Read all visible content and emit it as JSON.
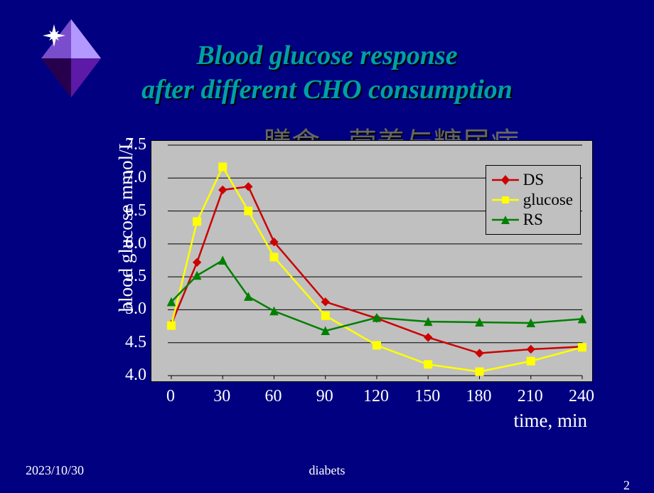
{
  "background_color": "#000080",
  "title": {
    "line1": "Blood glucose response",
    "line2": "after different CHO consumption",
    "color": "#00a0a8",
    "shadow_color": "#000000",
    "font_size": 38,
    "font_style": "italic bold"
  },
  "subtitle": {
    "text": "膳食、营养与糖尿病",
    "color": "#666666",
    "shadow_color": "#000000",
    "font_size": 40
  },
  "chart": {
    "type": "line",
    "plot_background": "#c0c0c0",
    "plot_border_color": "#000000",
    "grid_color": "#000000",
    "y_axis": {
      "label": "blood glucose mmol/L",
      "min": 4.0,
      "max": 7.5,
      "tick_step": 0.5,
      "ticks": [
        "4.0",
        "4.5",
        "5.0",
        "5.5",
        "6.0",
        "6.5",
        "7.0",
        "7.5"
      ],
      "tick_color": "#ffffff",
      "tick_fontsize": 24,
      "label_color": "#ffffff",
      "label_fontsize": 27
    },
    "x_axis": {
      "label": "time, min",
      "min": 0,
      "max": 240,
      "ticks": [
        0,
        30,
        60,
        90,
        120,
        150,
        180,
        210,
        240
      ],
      "tick_color": "#ffffff",
      "tick_fontsize": 24,
      "label_color": "#ffffff",
      "label_fontsize": 27
    },
    "series": [
      {
        "name": "DS",
        "color": "#cc0000",
        "marker": "diamond",
        "marker_fill": "#cc0000",
        "line_width": 2.5,
        "x": [
          0,
          15,
          30,
          45,
          60,
          90,
          120,
          150,
          180,
          210,
          240
        ],
        "y": [
          4.78,
          5.72,
          6.82,
          6.87,
          6.03,
          5.12,
          4.87,
          4.58,
          4.34,
          4.4,
          4.44
        ]
      },
      {
        "name": "glucose",
        "color": "#ffff00",
        "marker": "square",
        "marker_fill": "#ffff00",
        "line_width": 2.5,
        "x": [
          0,
          15,
          30,
          45,
          60,
          90,
          120,
          150,
          180,
          210,
          240
        ],
        "y": [
          4.76,
          6.34,
          7.17,
          6.5,
          5.8,
          4.91,
          4.46,
          4.17,
          4.06,
          4.22,
          4.43
        ]
      },
      {
        "name": "RS",
        "color": "#008000",
        "marker": "triangle",
        "marker_fill": "#008000",
        "line_width": 2.5,
        "x": [
          0,
          15,
          30,
          45,
          60,
          90,
          120,
          150,
          180,
          210,
          240
        ],
        "y": [
          5.12,
          5.52,
          5.75,
          5.2,
          4.98,
          4.68,
          4.88,
          4.82,
          4.81,
          4.8,
          4.86
        ]
      }
    ],
    "legend": {
      "position": "top-right",
      "background": "#c0c0c0",
      "border_color": "#000000",
      "font_size": 23,
      "text_color": "#000000"
    }
  },
  "footer": {
    "date": "2023/10/30",
    "center": "diabets",
    "page": "2",
    "color": "#ffffff",
    "font_size": 18
  },
  "diamond_decoration": {
    "outer_color": "#9966ff",
    "inner_dark": "#330066",
    "highlight": "#ffffff",
    "star_color": "#ffffff"
  }
}
